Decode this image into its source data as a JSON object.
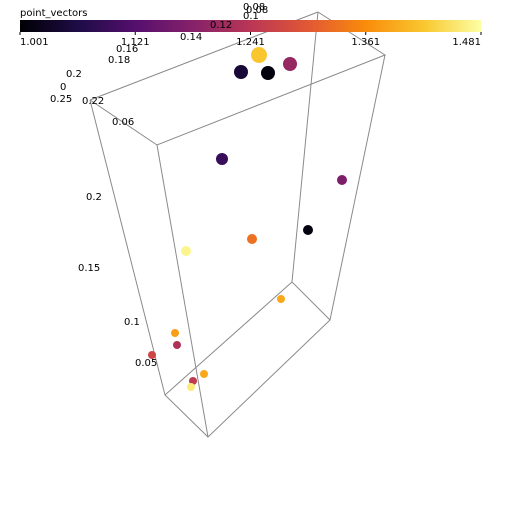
{
  "chart_data": {
    "type": "scatter3d",
    "colorbar": {
      "title": "point_vectors",
      "clim": [
        1.001,
        1.481
      ],
      "ticks": [
        1.001,
        1.121,
        1.241,
        1.361,
        1.481
      ],
      "colormap": "inferno"
    },
    "axis_labels": [
      "0.08",
      "0.08",
      "0.1",
      "0.12",
      "0.14",
      "0.16",
      "0.18",
      "0.2",
      "0",
      "0.25",
      "0.22",
      "0.06",
      "0.2",
      "0.15",
      "0.1",
      "0.05"
    ],
    "values": [
      1.05,
      1.01,
      1.2,
      1.42,
      1.09,
      1.17,
      1.01,
      1.33,
      1.47,
      1.39,
      1.38,
      1.23,
      1.27,
      1.39,
      1.25,
      1.46
    ]
  }
}
